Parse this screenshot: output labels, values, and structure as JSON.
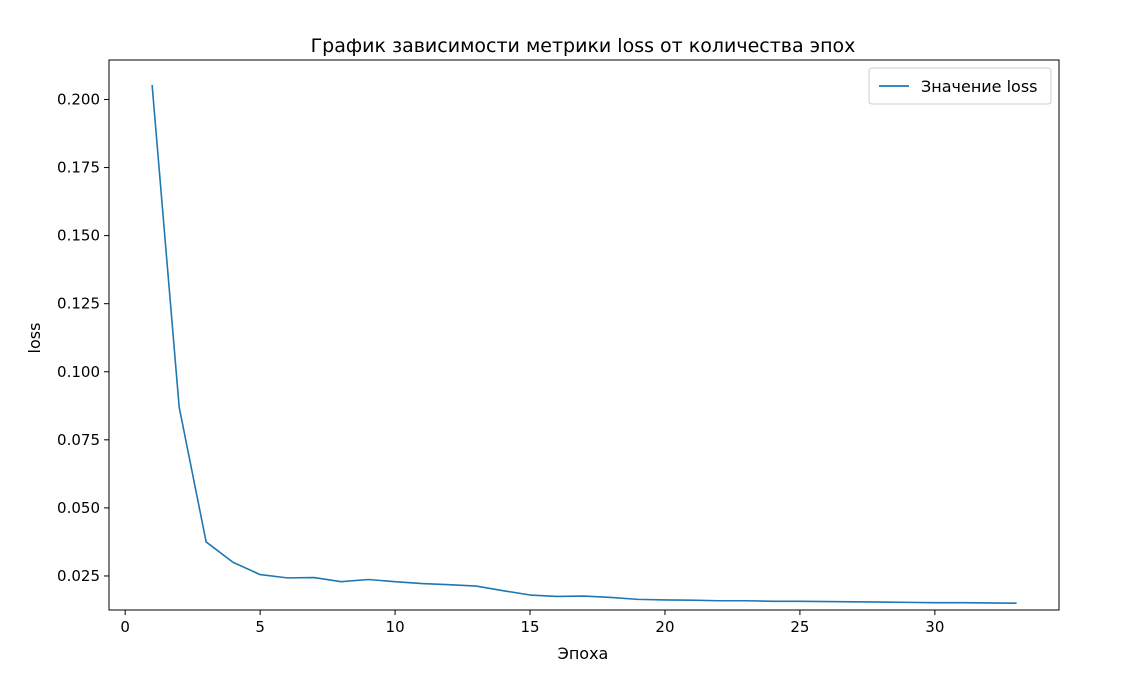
{
  "chart_data": {
    "type": "line",
    "title": "График зависимости метрики loss от количества эпох",
    "xlabel": "Эпоха",
    "ylabel": "loss",
    "xlim": [
      -0.6,
      34.6
    ],
    "ylim": [
      0.0125,
      0.2145
    ],
    "xticks": [
      0,
      5,
      10,
      15,
      20,
      25,
      30
    ],
    "yticks": [
      0.025,
      0.05,
      0.075,
      0.1,
      0.125,
      0.15,
      0.175,
      0.2
    ],
    "xtick_labels": [
      "0",
      "5",
      "10",
      "15",
      "20",
      "25",
      "30"
    ],
    "ytick_labels": [
      "0.025",
      "0.050",
      "0.075",
      "0.100",
      "0.125",
      "0.150",
      "0.175",
      "0.200"
    ],
    "grid": false,
    "legend_position": "top-right",
    "series": [
      {
        "name": "Значение loss",
        "color": "#1f77b4",
        "x": [
          1,
          2,
          3,
          4,
          5,
          6,
          7,
          8,
          9,
          10,
          11,
          12,
          13,
          14,
          15,
          16,
          17,
          18,
          19,
          20,
          21,
          22,
          23,
          24,
          25,
          26,
          27,
          28,
          29,
          30,
          31,
          32,
          33
        ],
        "values": [
          0.205,
          0.087,
          0.0375,
          0.03,
          0.0255,
          0.0243,
          0.0244,
          0.0229,
          0.0237,
          0.0229,
          0.0222,
          0.0218,
          0.0213,
          0.0196,
          0.018,
          0.0175,
          0.0176,
          0.0171,
          0.0164,
          0.0162,
          0.0161,
          0.0159,
          0.0159,
          0.0157,
          0.0157,
          0.0156,
          0.0155,
          0.0154,
          0.0153,
          0.0152,
          0.0152,
          0.0151,
          0.015
        ]
      }
    ]
  }
}
